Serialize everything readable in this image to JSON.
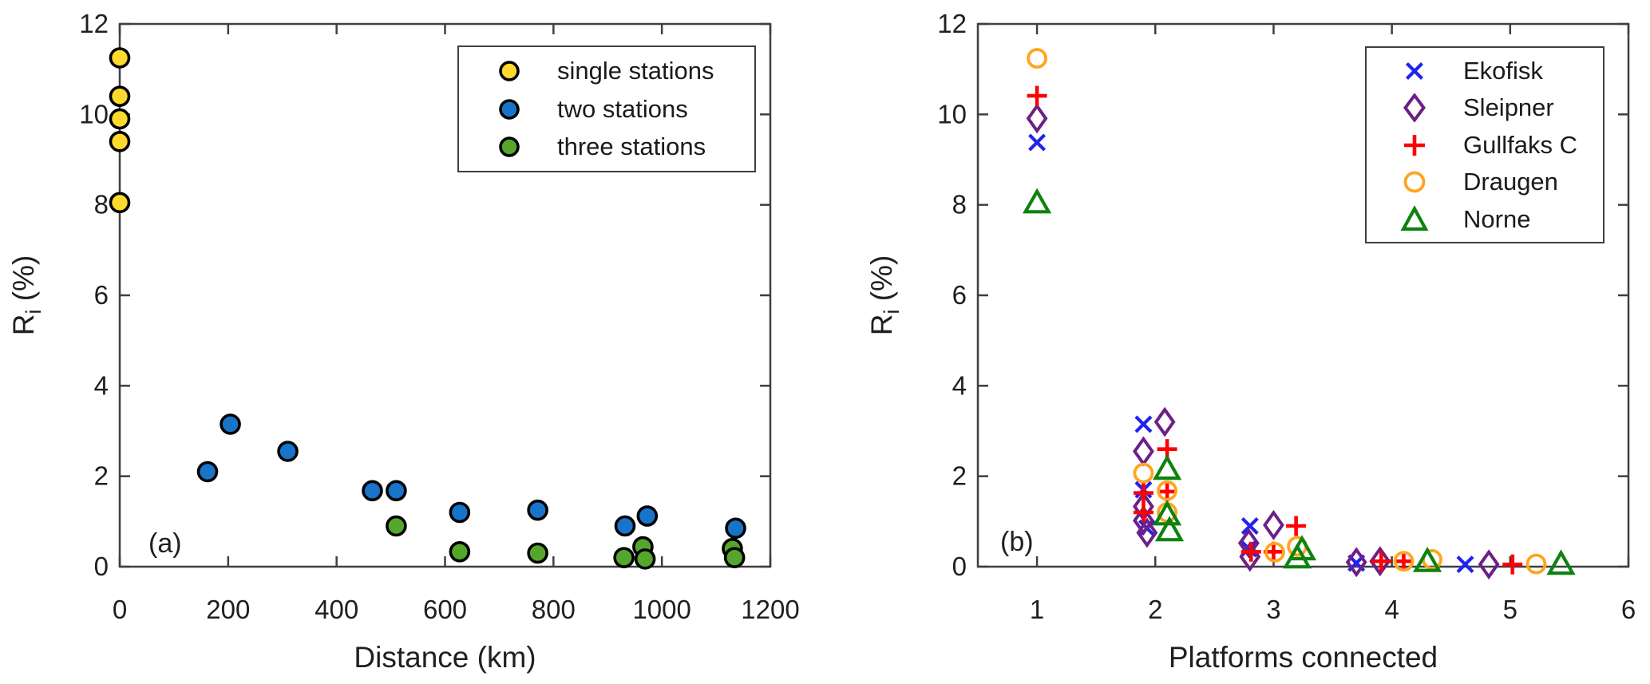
{
  "figure": {
    "background": "#ffffff",
    "axis_color": "#3f3f3f",
    "text_color": "#1f1f1f"
  },
  "chart_data": [
    {
      "type": "scatter",
      "panel_label": "(a)",
      "title": "",
      "xlabel": "Distance (km)",
      "ylabel": "R_i (%)",
      "ylabel_parts": {
        "base": "R",
        "sub": "i",
        "unit": " (%)"
      },
      "xlim": [
        0,
        1200
      ],
      "ylim": [
        0,
        12
      ],
      "xticks": [
        0,
        200,
        400,
        600,
        800,
        1000,
        1200
      ],
      "yticks": [
        0,
        2,
        4,
        6,
        8,
        10,
        12
      ],
      "grid": false,
      "legend_position": "top-right-inside",
      "series": [
        {
          "name": "single stations",
          "marker": "circle-filled",
          "color": "#FFD92E",
          "edge_color": "#000000",
          "points": [
            [
              0,
              11.25
            ],
            [
              0,
              10.4
            ],
            [
              0,
              9.9
            ],
            [
              0,
              9.4
            ],
            [
              0,
              8.05
            ]
          ]
        },
        {
          "name": "two stations",
          "marker": "circle-filled",
          "color": "#1874C8",
          "edge_color": "#000000",
          "points": [
            [
              162,
              2.1
            ],
            [
              204,
              3.15
            ],
            [
              310,
              2.55
            ],
            [
              466,
              1.68
            ],
            [
              510,
              1.68
            ],
            [
              627,
              1.2
            ],
            [
              771,
              1.25
            ],
            [
              932,
              0.9
            ],
            [
              973,
              1.12
            ],
            [
              1136,
              0.85
            ]
          ]
        },
        {
          "name": "three stations",
          "marker": "circle-filled",
          "color": "#55A62C",
          "edge_color": "#000000",
          "points": [
            [
              510,
              0.9
            ],
            [
              627,
              0.33
            ],
            [
              771,
              0.3
            ],
            [
              930,
              0.2
            ],
            [
              965,
              0.44
            ],
            [
              969,
              0.17
            ],
            [
              1130,
              0.4
            ],
            [
              1134,
              0.2
            ]
          ]
        }
      ]
    },
    {
      "type": "scatter",
      "panel_label": "(b)",
      "title": "",
      "xlabel": "Platforms connected",
      "ylabel": "R_i (%)",
      "ylabel_parts": {
        "base": "R",
        "sub": "i",
        "unit": " (%)"
      },
      "xlim": [
        0.5,
        6
      ],
      "ylim": [
        0,
        12
      ],
      "xticks": [
        1,
        2,
        3,
        4,
        5,
        6
      ],
      "yticks": [
        0,
        2,
        4,
        6,
        8,
        10,
        12
      ],
      "grid": false,
      "legend_position": "top-right-inside",
      "series": [
        {
          "name": "Ekofisk",
          "marker": "x",
          "color": "#2222F0",
          "points": [
            [
              1,
              9.38
            ],
            [
              1.9,
              3.15
            ],
            [
              1.9,
              1.7
            ],
            [
              1.93,
              0.85
            ],
            [
              2.8,
              0.9
            ],
            [
              2.79,
              0.4
            ],
            [
              3.7,
              0.08
            ],
            [
              4.62,
              0.05
            ]
          ]
        },
        {
          "name": "Sleipner",
          "marker": "diamond-open",
          "color": "#6E1F87",
          "points": [
            [
              1,
              9.91
            ],
            [
              2.08,
              3.2
            ],
            [
              1.9,
              2.55
            ],
            [
              1.9,
              1.33
            ],
            [
              1.9,
              1.02
            ],
            [
              1.93,
              0.75
            ],
            [
              3.0,
              0.92
            ],
            [
              2.79,
              0.52
            ],
            [
              2.8,
              0.22
            ],
            [
              3.7,
              0.1
            ],
            [
              3.9,
              0.12
            ],
            [
              4.82,
              0.05
            ]
          ]
        },
        {
          "name": "Gullfaks C",
          "marker": "plus",
          "color": "#FF0000",
          "points": [
            [
              1,
              10.41
            ],
            [
              2.1,
              2.6
            ],
            [
              2.1,
              1.66
            ],
            [
              1.9,
              1.63
            ],
            [
              1.9,
              1.2
            ],
            [
              3.19,
              0.9
            ],
            [
              3.0,
              0.33
            ],
            [
              2.81,
              0.33
            ],
            [
              3.91,
              0.12
            ],
            [
              4.1,
              0.12
            ],
            [
              5.02,
              0.05
            ]
          ]
        },
        {
          "name": "Draugen",
          "marker": "circle-open",
          "color": "#FFA51E",
          "points": [
            [
              1,
              11.24
            ],
            [
              1.9,
              2.07
            ],
            [
              2.1,
              1.68
            ],
            [
              2.1,
              1.2
            ],
            [
              3.2,
              0.45
            ],
            [
              3.01,
              0.32
            ],
            [
              4.1,
              0.12
            ],
            [
              4.34,
              0.16
            ],
            [
              5.22,
              0.06
            ]
          ]
        },
        {
          "name": "Norne",
          "marker": "triangle-open",
          "color": "#0E820E",
          "points": [
            [
              1,
              8.05
            ],
            [
              2.1,
              2.16
            ],
            [
              2.1,
              1.15
            ],
            [
              2.12,
              0.8
            ],
            [
              3.24,
              0.38
            ],
            [
              3.2,
              0.2
            ],
            [
              4.3,
              0.12
            ],
            [
              5.43,
              0.06
            ]
          ]
        }
      ]
    }
  ]
}
